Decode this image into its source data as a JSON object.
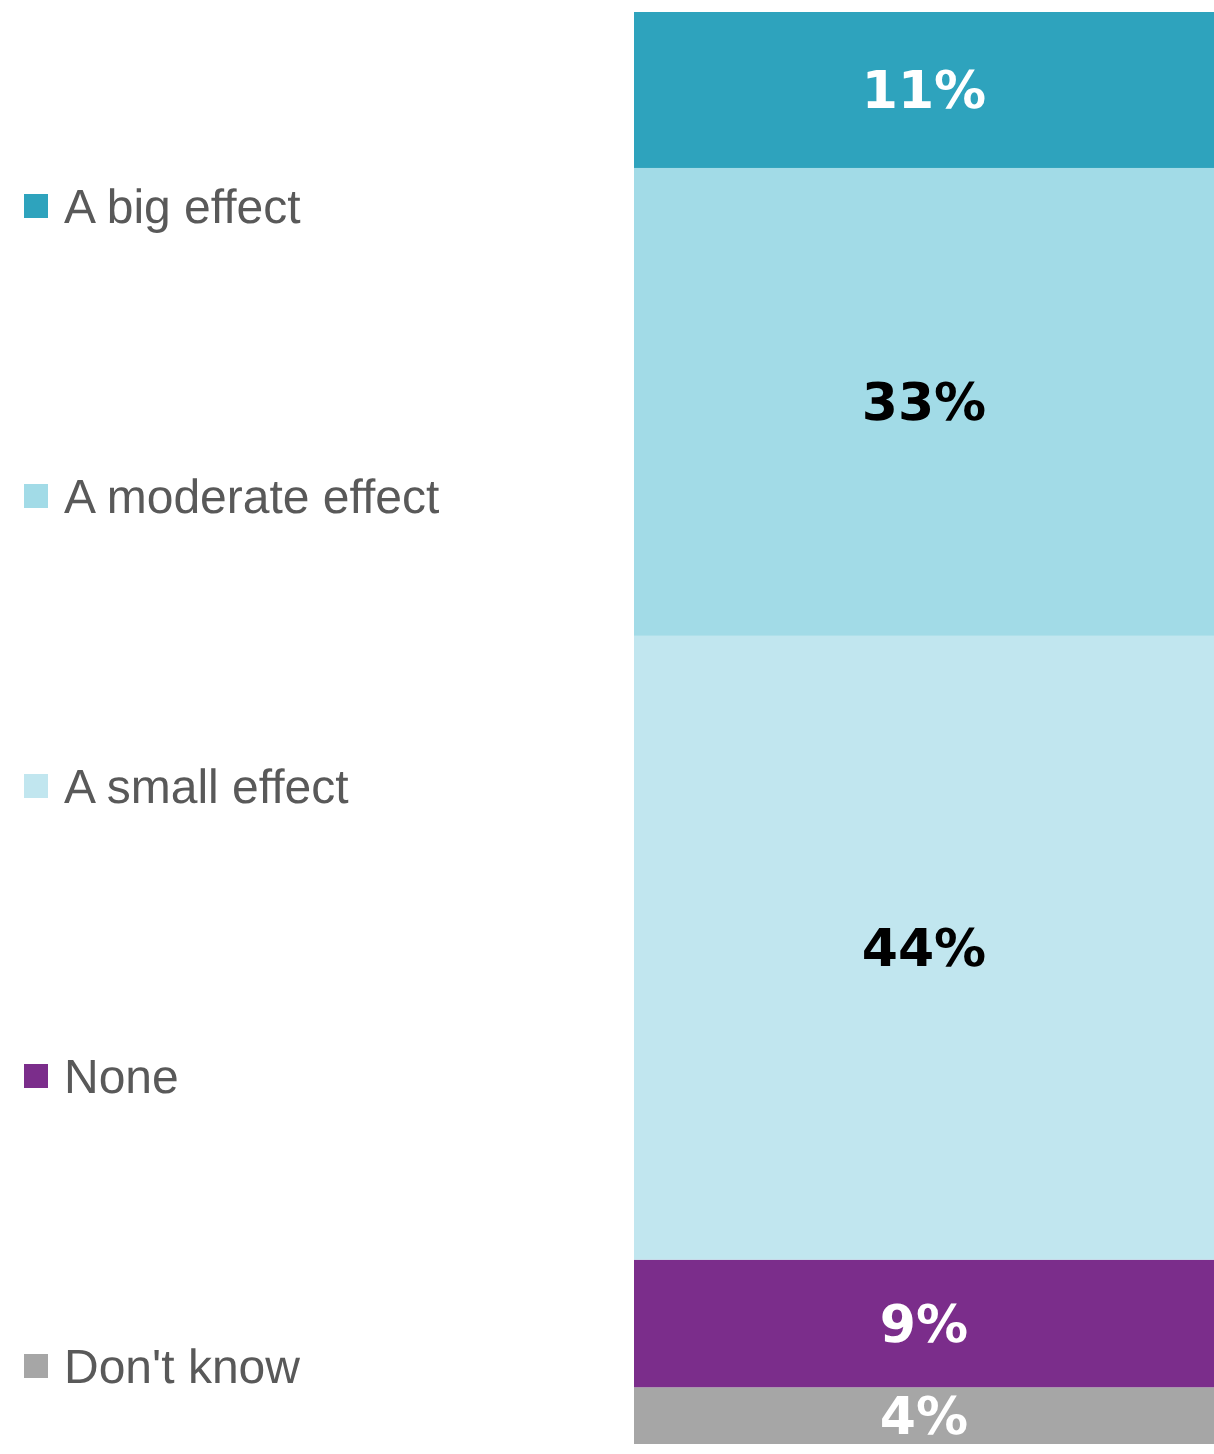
{
  "chart_data": {
    "type": "bar",
    "stacked": true,
    "categories": [
      null
    ],
    "legend": "left",
    "series": [
      {
        "name": "Don't know",
        "color": "#a6a6a6",
        "values": [
          4
        ],
        "value_labels": [
          "4%"
        ]
      },
      {
        "name": "None",
        "color": "#7b2d8b",
        "values": [
          9
        ],
        "value_labels": [
          "9%"
        ]
      },
      {
        "name": "A small effect",
        "color": "#c1e6ef",
        "values": [
          44
        ],
        "value_labels": [
          "44%"
        ]
      },
      {
        "name": "A moderate effect",
        "color": "#a2dbe7",
        "values": [
          33
        ],
        "value_labels": [
          "33%"
        ]
      },
      {
        "name": "A big effect",
        "color": "#2ea3bd",
        "values": [
          11
        ],
        "value_labels": [
          "11%"
        ]
      }
    ]
  }
}
